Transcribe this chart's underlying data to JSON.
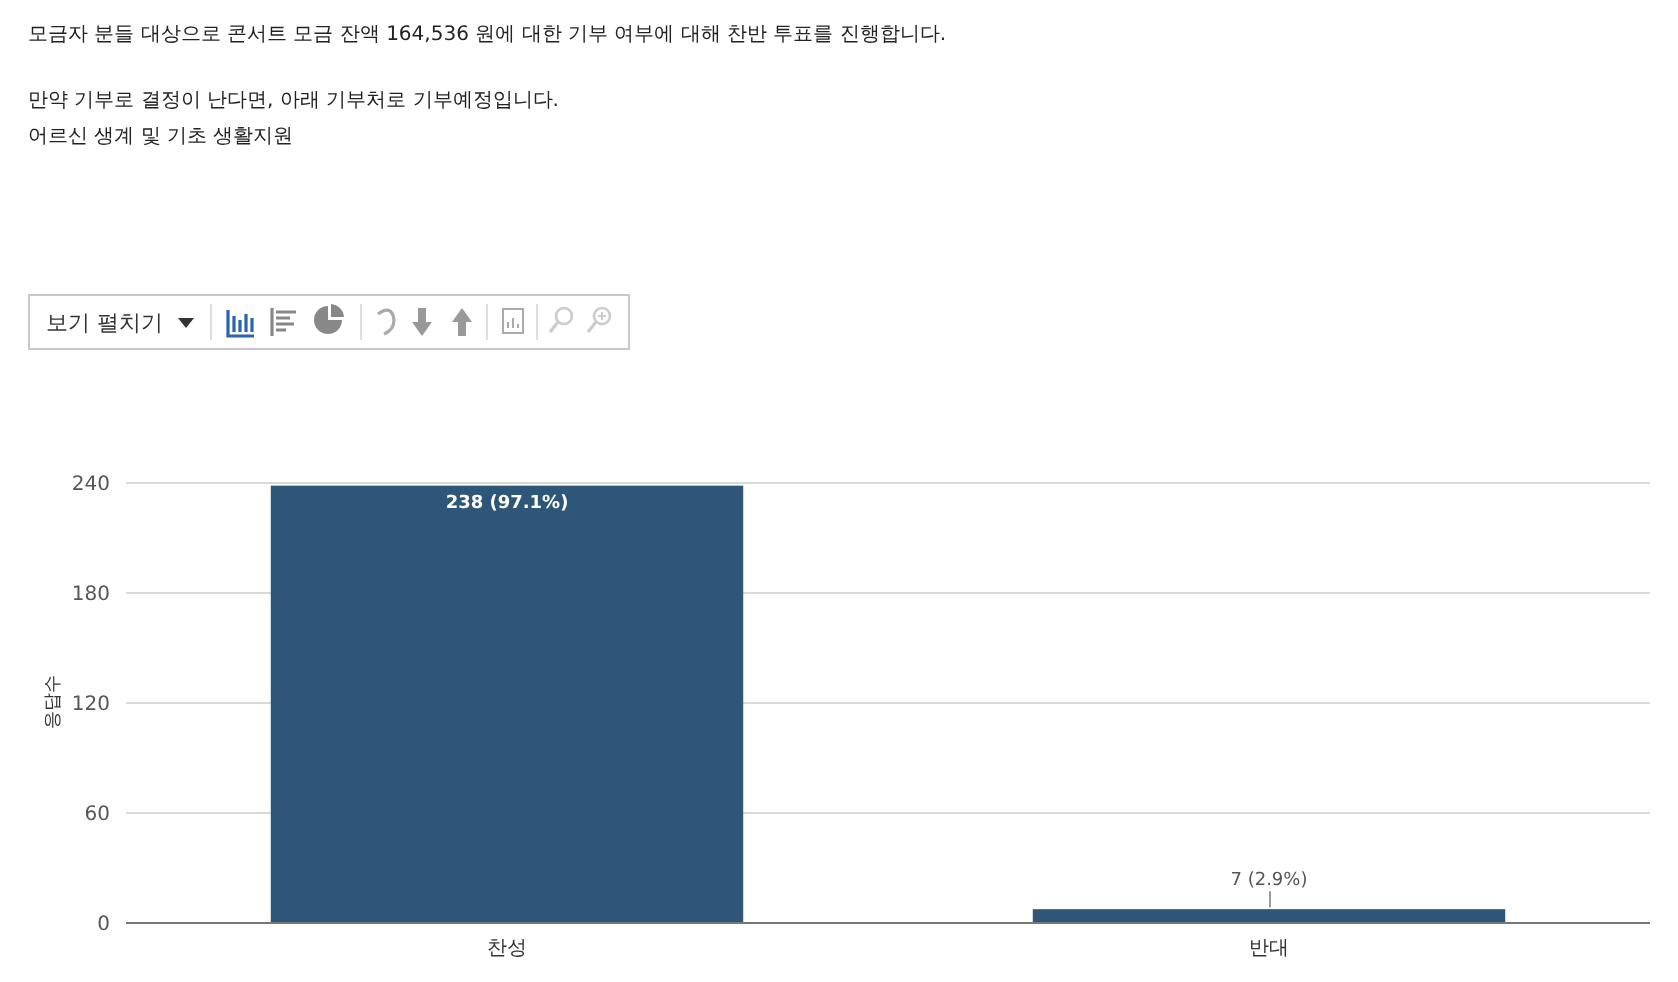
{
  "chart_data": {
    "type": "bar",
    "title": "모금자 분들 대상으로 콘서트 모금 잔액 164,536 원에 대한 기부 여부에 대해 찬반 투표를 진행합니다.",
    "subtitle": "만약 기부로 결정이 난다면, 아래 기부처로 기부예정입니다.",
    "annotations": [
      "어르신 생계 및 기초 생활지원",
      "보기 펼치기"
    ],
    "ylabel": "응답수",
    "categories": [
      "찬성",
      "반대"
    ],
    "values": [
      238,
      7
    ],
    "value_labels": [
      "238 (97.1%)",
      "7 (2.9%)"
    ],
    "color": "#2d5679",
    "ylim": [
      0,
      240
    ],
    "yticks": [
      0,
      60,
      120,
      180,
      240
    ],
    "grid": "y"
  }
}
